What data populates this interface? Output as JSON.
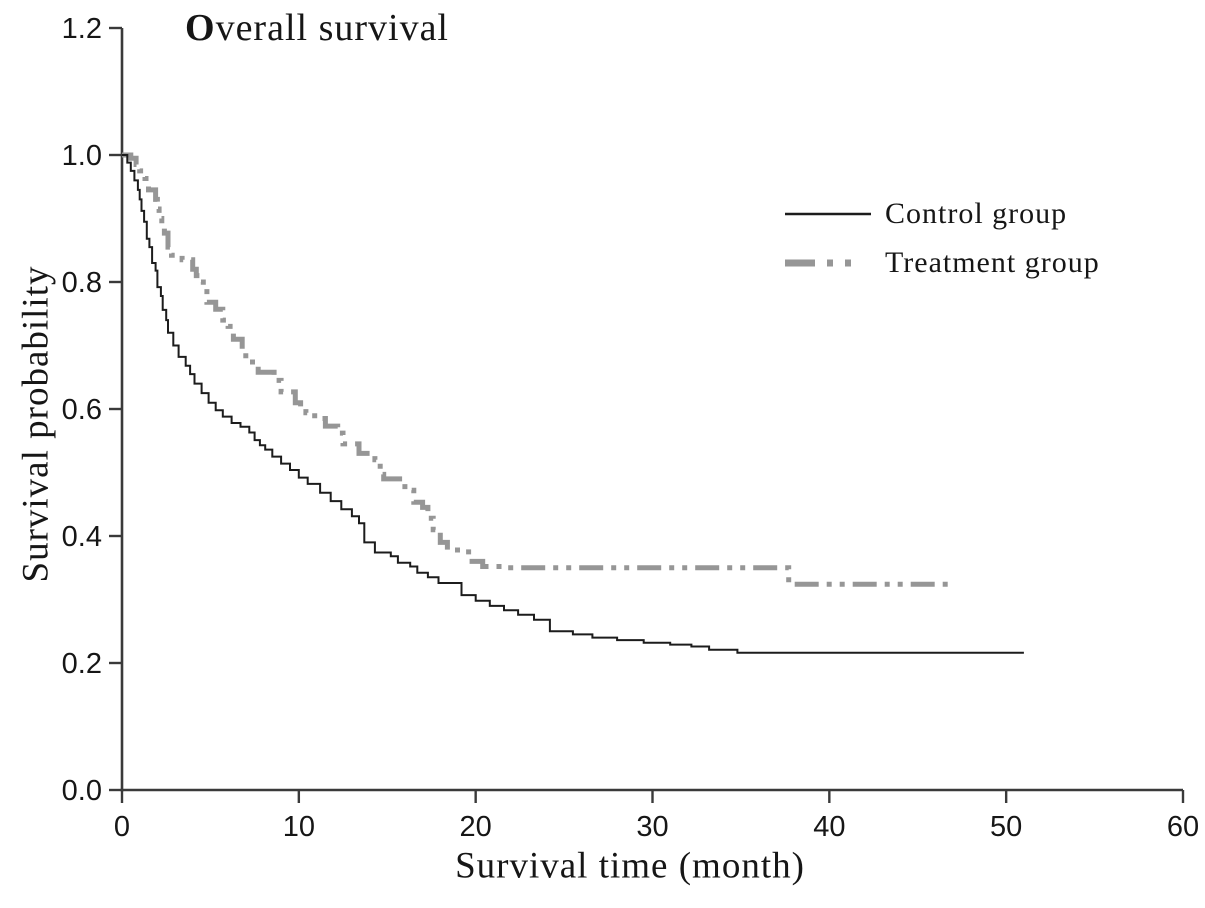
{
  "title": {
    "first_letter": "O",
    "rest": "verall survival"
  },
  "y_axis_title": "Survival probability",
  "x_axis_title": "Survival time (month)",
  "legend": {
    "items": [
      {
        "label": "Control group"
      },
      {
        "label": "Treatment group"
      }
    ]
  },
  "colors": {
    "control": "#1c1c1c",
    "treatment": "#969696",
    "axis": "#3a3a3a",
    "tick_text": "#161616"
  },
  "chart_data": {
    "type": "line",
    "subtype": "kaplan-meier-step",
    "title": "Overall survival",
    "xlabel": "Survival time (month)",
    "ylabel": "Survival probability",
    "xlim": [
      0,
      60
    ],
    "ylim": [
      0.0,
      1.2
    ],
    "x_ticks": [
      0,
      10,
      20,
      30,
      40,
      50,
      60
    ],
    "y_ticks": [
      0.0,
      0.2,
      0.4,
      0.6,
      0.8,
      1.0,
      1.2
    ],
    "grid": false,
    "legend_position": "upper right",
    "series": [
      {
        "name": "Control group",
        "style": "solid",
        "color": "#1c1c1c",
        "width": 2,
        "points": [
          [
            0,
            1.0
          ],
          [
            0.3,
            0.988
          ],
          [
            0.5,
            0.975
          ],
          [
            0.7,
            0.96
          ],
          [
            0.9,
            0.945
          ],
          [
            1.0,
            0.93
          ],
          [
            1.1,
            0.912
          ],
          [
            1.25,
            0.895
          ],
          [
            1.4,
            0.868
          ],
          [
            1.55,
            0.855
          ],
          [
            1.7,
            0.83
          ],
          [
            1.9,
            0.818
          ],
          [
            2.0,
            0.792
          ],
          [
            2.2,
            0.778
          ],
          [
            2.3,
            0.756
          ],
          [
            2.5,
            0.74
          ],
          [
            2.6,
            0.72
          ],
          [
            2.9,
            0.7
          ],
          [
            3.2,
            0.682
          ],
          [
            3.6,
            0.668
          ],
          [
            3.85,
            0.655
          ],
          [
            4.1,
            0.64
          ],
          [
            4.5,
            0.625
          ],
          [
            4.9,
            0.61
          ],
          [
            5.3,
            0.598
          ],
          [
            5.7,
            0.588
          ],
          [
            6.2,
            0.578
          ],
          [
            6.7,
            0.572
          ],
          [
            7.2,
            0.563
          ],
          [
            7.5,
            0.551
          ],
          [
            7.8,
            0.543
          ],
          [
            8.1,
            0.536
          ],
          [
            8.5,
            0.525
          ],
          [
            9.0,
            0.514
          ],
          [
            9.5,
            0.504
          ],
          [
            10.0,
            0.492
          ],
          [
            10.5,
            0.482
          ],
          [
            11.2,
            0.468
          ],
          [
            11.8,
            0.455
          ],
          [
            12.4,
            0.442
          ],
          [
            13.0,
            0.431
          ],
          [
            13.4,
            0.42
          ],
          [
            13.7,
            0.39
          ],
          [
            14.3,
            0.374
          ],
          [
            15.2,
            0.368
          ],
          [
            15.6,
            0.358
          ],
          [
            16.3,
            0.352
          ],
          [
            16.7,
            0.342
          ],
          [
            17.3,
            0.335
          ],
          [
            17.9,
            0.326
          ],
          [
            19.2,
            0.307
          ],
          [
            20.0,
            0.298
          ],
          [
            20.8,
            0.29
          ],
          [
            21.6,
            0.283
          ],
          [
            22.4,
            0.276
          ],
          [
            23.3,
            0.268
          ],
          [
            24.2,
            0.25
          ],
          [
            25.5,
            0.245
          ],
          [
            26.6,
            0.24
          ],
          [
            28.0,
            0.236
          ],
          [
            29.5,
            0.232
          ],
          [
            31.0,
            0.229
          ],
          [
            32.2,
            0.226
          ],
          [
            33.2,
            0.221
          ],
          [
            34.8,
            0.216
          ],
          [
            51,
            0.216
          ]
        ]
      },
      {
        "name": "Treatment group",
        "style": "dash-dot-dot",
        "color": "#969696",
        "width": 5,
        "points": [
          [
            0,
            1.0
          ],
          [
            0.5,
            0.995
          ],
          [
            0.8,
            0.985
          ],
          [
            1.0,
            0.975
          ],
          [
            1.3,
            0.963
          ],
          [
            1.5,
            0.945
          ],
          [
            1.9,
            0.93
          ],
          [
            2.0,
            0.915
          ],
          [
            2.1,
            0.9
          ],
          [
            2.25,
            0.888
          ],
          [
            2.4,
            0.877
          ],
          [
            2.6,
            0.855
          ],
          [
            2.8,
            0.842
          ],
          [
            3.4,
            0.835
          ],
          [
            4.0,
            0.82
          ],
          [
            4.2,
            0.81
          ],
          [
            4.4,
            0.8
          ],
          [
            4.6,
            0.79
          ],
          [
            4.8,
            0.768
          ],
          [
            5.3,
            0.757
          ],
          [
            5.7,
            0.74
          ],
          [
            6.0,
            0.73
          ],
          [
            6.3,
            0.71
          ],
          [
            6.8,
            0.693
          ],
          [
            7.0,
            0.674
          ],
          [
            7.7,
            0.658
          ],
          [
            8.6,
            0.645
          ],
          [
            9.0,
            0.627
          ],
          [
            9.8,
            0.61
          ],
          [
            10.1,
            0.6
          ],
          [
            10.4,
            0.594
          ],
          [
            10.9,
            0.585
          ],
          [
            11.5,
            0.573
          ],
          [
            12.2,
            0.562
          ],
          [
            12.5,
            0.545
          ],
          [
            13.4,
            0.53
          ],
          [
            14.3,
            0.52
          ],
          [
            14.6,
            0.497
          ],
          [
            14.8,
            0.49
          ],
          [
            16.0,
            0.472
          ],
          [
            16.5,
            0.453
          ],
          [
            17.0,
            0.445
          ],
          [
            17.3,
            0.428
          ],
          [
            17.6,
            0.41
          ],
          [
            18.0,
            0.39
          ],
          [
            18.4,
            0.378
          ],
          [
            19.3,
            0.375
          ],
          [
            19.8,
            0.36
          ],
          [
            20.4,
            0.352
          ],
          [
            21.5,
            0.35
          ],
          [
            37.7,
            0.324
          ],
          [
            47,
            0.324
          ]
        ]
      }
    ]
  }
}
